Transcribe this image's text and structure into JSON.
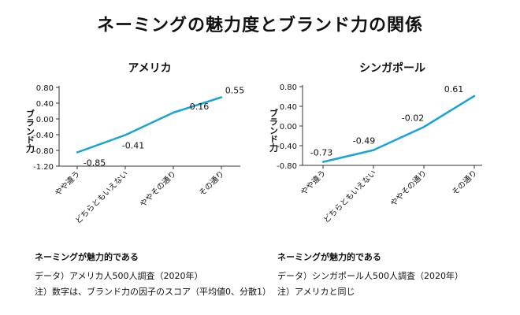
{
  "title": "ネーミングの魅力度とブランド力の関係",
  "chart_data": [
    {
      "type": "line",
      "title": "アメリカ",
      "xlabel": "ネーミングが魅力的である",
      "ylabel": "ブランド力",
      "categories": [
        "やや違う",
        "どちらともいえない",
        "ややその通り",
        "その通り"
      ],
      "values": [
        -0.85,
        -0.41,
        0.16,
        0.55
      ],
      "data_labels": [
        "-0.85",
        "-0.41",
        "0.16",
        "0.55"
      ],
      "yticks": [
        "0.80",
        "0.40",
        "0.00",
        "-0.40",
        "-0.80",
        "-1.20"
      ],
      "ylim": [
        -1.2,
        0.8
      ],
      "grid": false,
      "color": "#1aa3d9"
    },
    {
      "type": "line",
      "title": "シンガポール",
      "xlabel": "ネーミングが魅力的である",
      "ylabel": "ブランド力",
      "categories": [
        "やや違う",
        "どちらともいえない",
        "ややその通り",
        "その通り"
      ],
      "values": [
        -0.73,
        -0.49,
        -0.02,
        0.61
      ],
      "data_labels": [
        "-0.73",
        "-0.49",
        "-0.02",
        "0.61"
      ],
      "yticks": [
        "0.80",
        "0.40",
        "0.00",
        "-0.40",
        "-0.80"
      ],
      "ylim": [
        -0.8,
        0.8
      ],
      "grid": false,
      "color": "#1aa3d9"
    }
  ],
  "notes": {
    "left_source": "データ）アメリカ人500人調査（2020年）",
    "left_note": "注）数字は、ブランド力の因子のスコア（平均値0、分散1）",
    "right_source": "データ）シンガポール人500人調査（2020年）",
    "right_note": "注）アメリカと同じ"
  }
}
